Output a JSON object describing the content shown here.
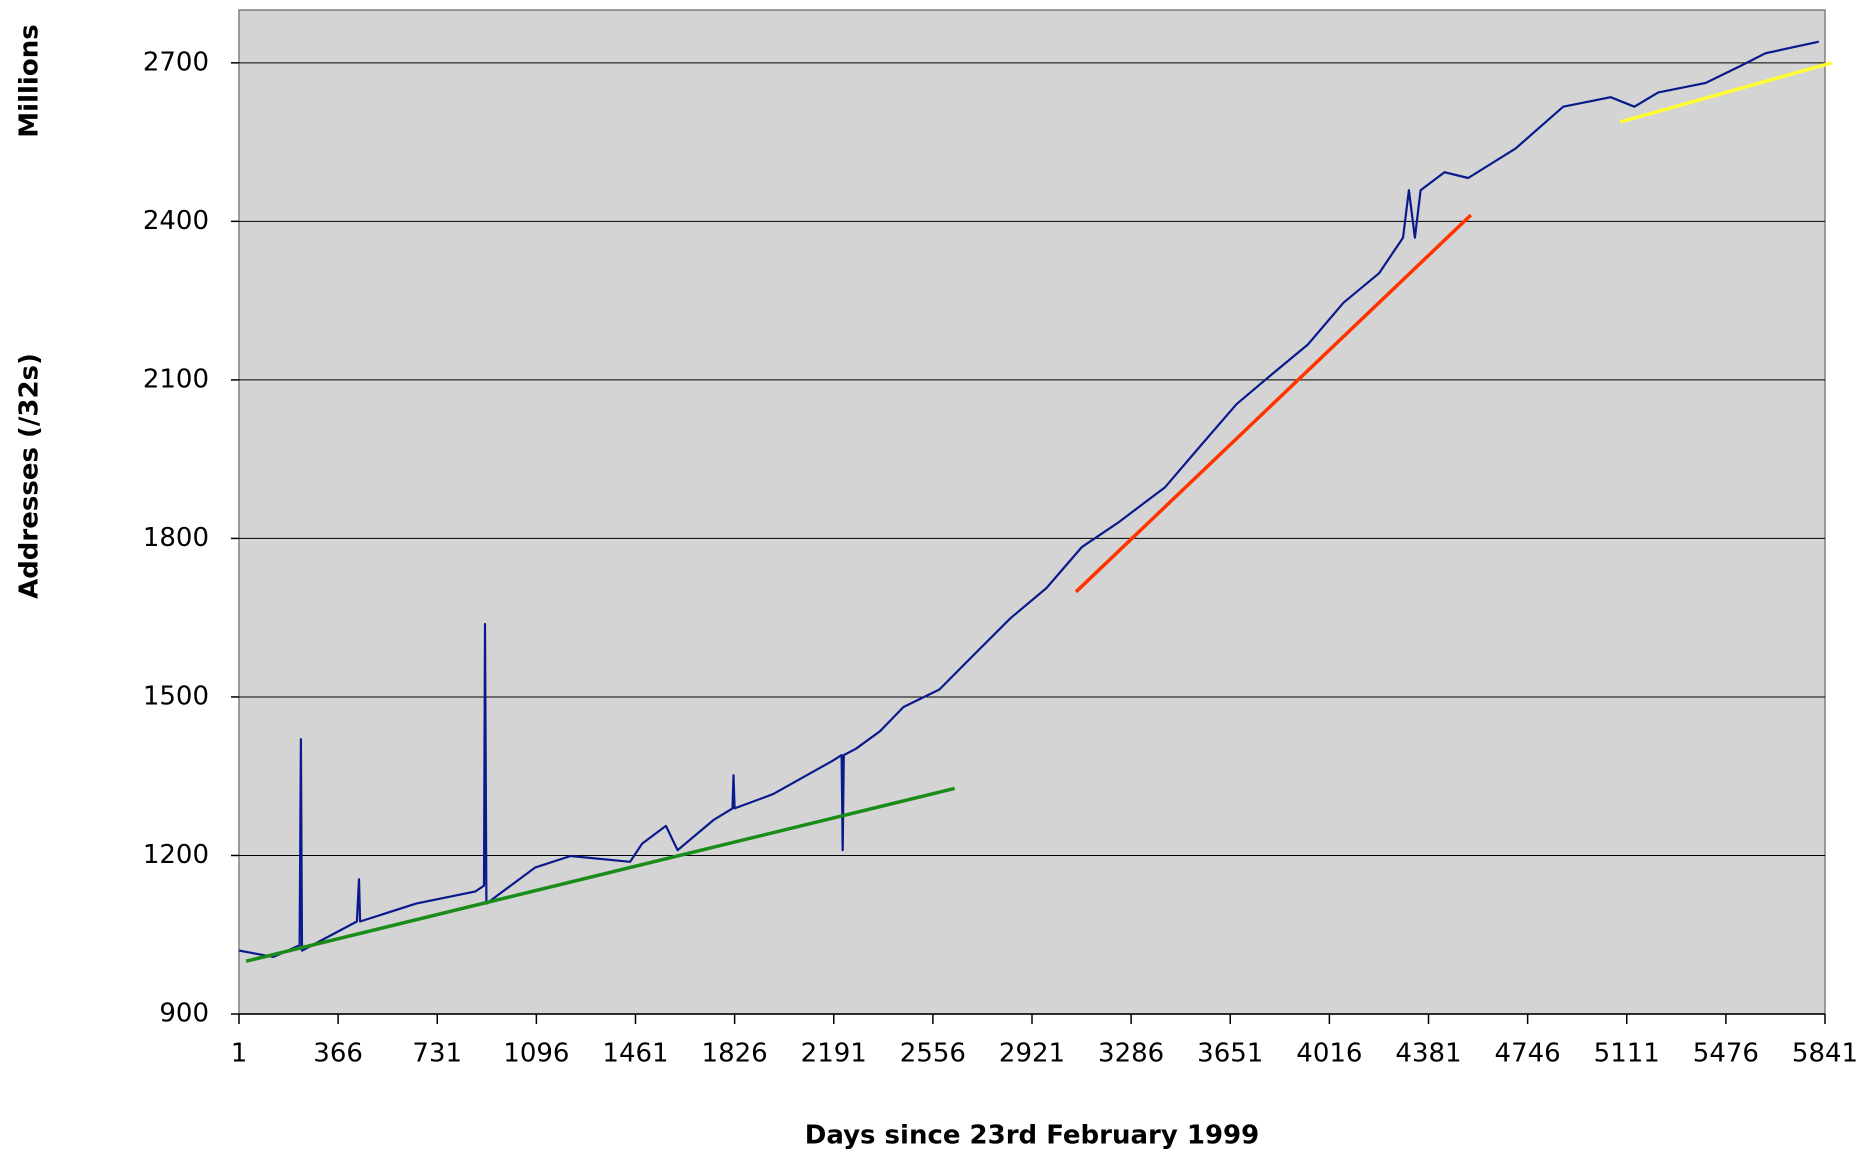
{
  "chart_data": {
    "type": "line",
    "y_label": "Addresses (/32s)",
    "y_unit": "Millions",
    "x_label": "Days since 23rd February 1999",
    "xlim": [
      1,
      5841
    ],
    "xticks": [
      1,
      366,
      731,
      1096,
      1461,
      1826,
      2191,
      2556,
      2921,
      3286,
      3651,
      4016,
      4381,
      4746,
      5111,
      5476,
      5841
    ],
    "ylim": [
      900,
      2800
    ],
    "yticks": [
      900,
      1200,
      1500,
      1800,
      2100,
      2400,
      2700
    ],
    "grid": true,
    "background": "#d4d4d4",
    "series": [
      {
        "color": "#0a1a8c",
        "x": [
          1,
          128,
          224,
          229,
          233,
          435,
          443,
          447,
          653,
          872,
          903,
          907,
          912,
          1091,
          1222,
          1441,
          1485,
          1573,
          1616,
          1748,
          1818,
          1822,
          1826,
          1967,
          2186,
          2220,
          2224,
          2228,
          2273,
          2361,
          2448,
          2580,
          2711,
          2842,
          2974,
          3105,
          3236,
          3411,
          3543,
          3674,
          3805,
          3937,
          4068,
          4199,
          4287,
          4309,
          4331,
          4352,
          4440,
          4527,
          4702,
          4877,
          5052,
          5139,
          5227,
          5402,
          5533,
          5621,
          5818
        ],
        "values": [
          1020,
          1008,
          1030,
          1420,
          1020,
          1075,
          1155,
          1075,
          1109,
          1132,
          1143,
          1638,
          1109,
          1177,
          1199,
          1188,
          1222,
          1256,
          1210,
          1267,
          1289,
          1352,
          1289,
          1316,
          1379,
          1390,
          1210,
          1390,
          1402,
          1435,
          1481,
          1514,
          1582,
          1649,
          1706,
          1784,
          1829,
          1897,
          1976,
          2054,
          2111,
          2167,
          2246,
          2302,
          2369,
          2459,
          2369,
          2459,
          2493,
          2482,
          2538,
          2617,
          2635,
          2617,
          2644,
          2662,
          2695,
          2718,
          2740
        ]
      },
      {
        "color": "#1a8c1a",
        "x": [
          27,
          2636
        ],
        "values": [
          1000,
          1327
        ]
      },
      {
        "color": "#ff3300",
        "x": [
          3083,
          4537
        ],
        "values": [
          1699,
          2412
        ]
      },
      {
        "color": "#ffff33",
        "x": [
          5087,
          5866
        ],
        "values": [
          2588,
          2700
        ]
      }
    ]
  }
}
